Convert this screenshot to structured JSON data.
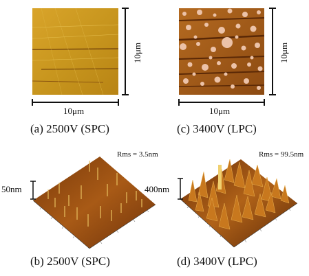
{
  "panels": {
    "a": {
      "caption": "(a) 2500V (SPC)",
      "scale_x": "10μm",
      "scale_y": "10μm"
    },
    "c": {
      "caption": "(c) 3400V (LPC)",
      "scale_x": "10μm",
      "scale_y": "10μm"
    },
    "b": {
      "caption": "(b) 2500V (SPC)",
      "rms": "Rms = 3.5nm",
      "height": "50nm"
    },
    "d": {
      "caption": "(d) 3400V (LPC)",
      "rms": "Rms = 99.5nm",
      "height": "400nm"
    }
  },
  "colors": {
    "afm_base": "#c8961e",
    "afm_dark": "#8a4a10",
    "afm_light": "#f0d060",
    "droplet": "#e8b8a0",
    "surface_c": "#a8641e"
  }
}
